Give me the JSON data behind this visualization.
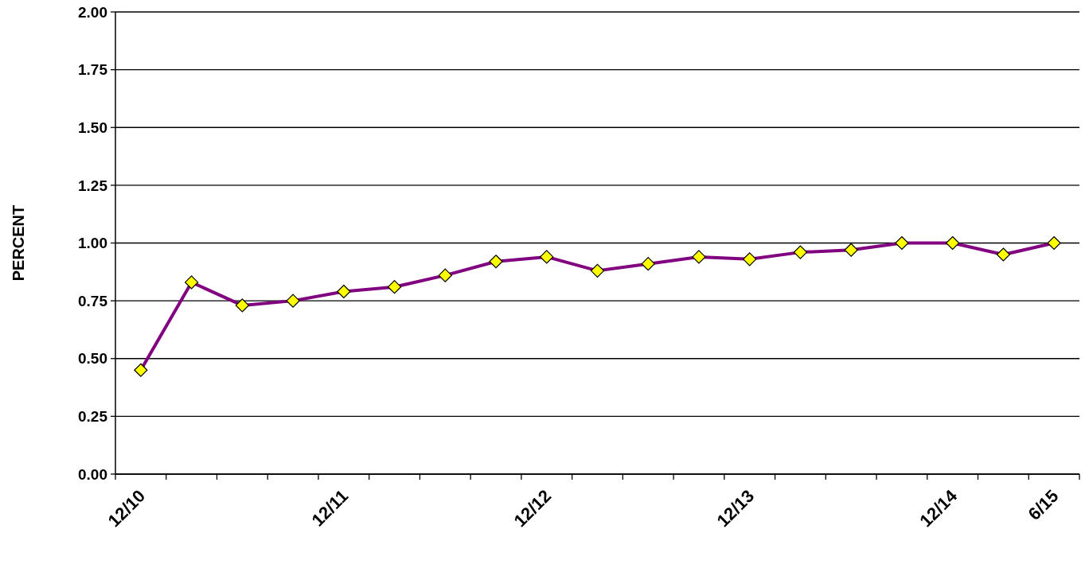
{
  "chart_data": {
    "type": "line",
    "ylabel": "PERCENT",
    "categories": [
      "12/10",
      null,
      null,
      null,
      "12/11",
      null,
      null,
      null,
      "12/12",
      null,
      null,
      null,
      "12/13",
      null,
      null,
      null,
      "12/14",
      null,
      "6/15"
    ],
    "series": [
      {
        "color": "#800080",
        "values": [
          0.45,
          0.83,
          0.73,
          0.75,
          0.79,
          0.81,
          0.86,
          0.92,
          0.94,
          0.88,
          0.91,
          0.94,
          0.93,
          0.96,
          0.97,
          1.0,
          1.0,
          0.95,
          1.0
        ]
      }
    ],
    "ylim": [
      0,
      2
    ],
    "yticks": [
      {
        "value": 0,
        "label": "0.00"
      },
      {
        "value": 0.25,
        "label": "0.25"
      },
      {
        "value": 0.5,
        "label": "0.50"
      },
      {
        "value": 0.75,
        "label": "0.75"
      },
      {
        "value": 1,
        "label": "1.00"
      },
      {
        "value": 1.25,
        "label": "1.25"
      },
      {
        "value": 1.5,
        "label": "1.50"
      },
      {
        "value": 1.75,
        "label": "1.75"
      },
      {
        "value": 2,
        "label": "2.00"
      }
    ],
    "grid": "y",
    "marker": "diamond",
    "line_style": "solid"
  }
}
